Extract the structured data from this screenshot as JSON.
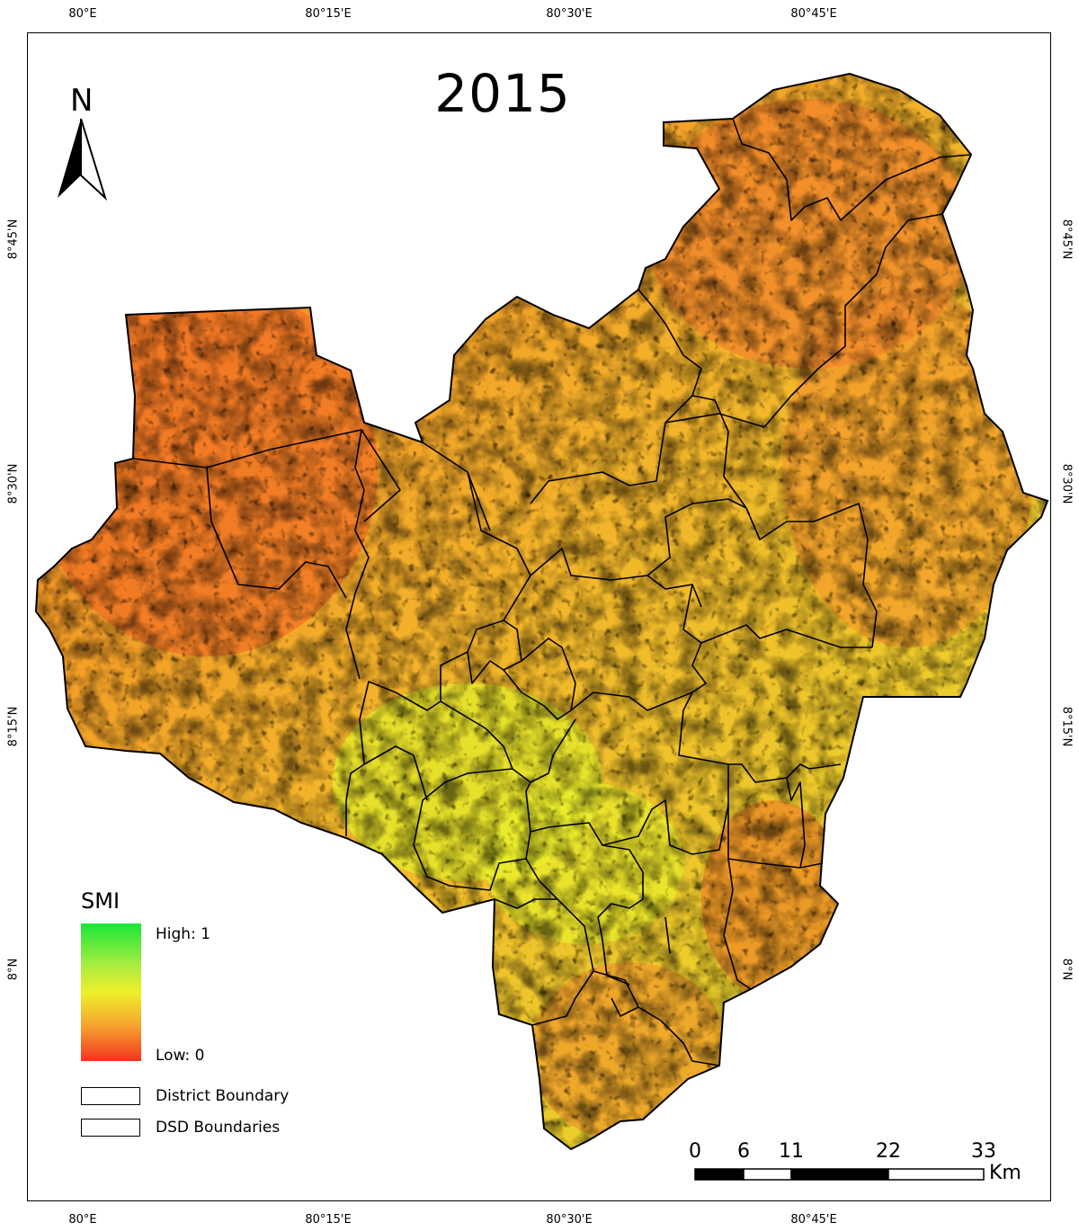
{
  "title": "2015",
  "graticule": {
    "longitude_labels": [
      "80°E",
      "80°15'E",
      "80°30'E",
      "80°45'E"
    ],
    "latitude_labels": [
      "8°45'N",
      "8°30'N",
      "8°15'N",
      "8°N"
    ]
  },
  "north_arrow": {
    "label": "N"
  },
  "legend": {
    "title": "SMI",
    "high_label": "High: 1",
    "low_label": "Low: 0",
    "items": [
      {
        "label": "District Boundary"
      },
      {
        "label": "DSD Boundaries"
      }
    ]
  },
  "scale_bar": {
    "ticks": [
      "0",
      "6",
      "11",
      "22",
      "33"
    ],
    "unit": "Km"
  },
  "colors": {
    "high": "#18e83a",
    "mid": "#eef02a",
    "low": "#f2341e",
    "boundary": "#000000"
  }
}
